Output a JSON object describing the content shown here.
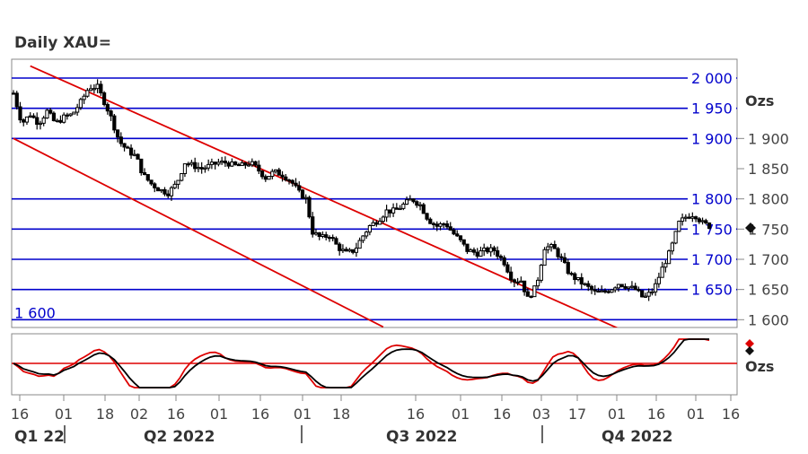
{
  "title": "Daily XAU=",
  "chart_data": [
    {
      "type": "candlestick",
      "title": "Daily XAU=",
      "unit_label": "Ozs",
      "ylim": [
        1590,
        2030
      ],
      "y_ticks": [
        "1 600",
        "1 650",
        "1 700",
        "1 750",
        "1 800",
        "1 850",
        "1 900"
      ],
      "y_tick_values": [
        1600,
        1650,
        1700,
        1750,
        1800,
        1850,
        1900
      ],
      "last_price": 1752,
      "level_lines": [
        {
          "value": 2000,
          "label": "2 000"
        },
        {
          "value": 1950,
          "label": "1 950"
        },
        {
          "value": 1900,
          "label": "1 900"
        },
        {
          "value": 1800,
          "label": "1 800"
        },
        {
          "value": 1750,
          "label": "1 750"
        },
        {
          "value": 1700,
          "label": "1 700"
        },
        {
          "value": 1650,
          "label": "1 650"
        },
        {
          "value": 1600,
          "label": "1 600"
        }
      ],
      "trend_lines": [
        {
          "name": "channel-upper",
          "from": {
            "day": 10,
            "value": 2020
          },
          "to": {
            "day": 312,
            "value": 1645
          }
        },
        {
          "name": "channel-lower",
          "from": {
            "day": 0,
            "value": 1900
          },
          "to": {
            "day": 220,
            "value": 1588
          }
        }
      ],
      "price_path": [
        [
          0,
          1975
        ],
        [
          5,
          1925
        ],
        [
          10,
          1940
        ],
        [
          15,
          1925
        ],
        [
          20,
          1945
        ],
        [
          25,
          1925
        ],
        [
          30,
          1935
        ],
        [
          35,
          1940
        ],
        [
          40,
          1960
        ],
        [
          45,
          1985
        ],
        [
          50,
          1985
        ],
        [
          55,
          1955
        ],
        [
          58,
          1935
        ],
        [
          63,
          1895
        ],
        [
          68,
          1880
        ],
        [
          73,
          1870
        ],
        [
          77,
          1840
        ],
        [
          82,
          1825
        ],
        [
          87,
          1815
        ],
        [
          92,
          1810
        ],
        [
          97,
          1825
        ],
        [
          102,
          1860
        ],
        [
          107,
          1855
        ],
        [
          112,
          1850
        ],
        [
          117,
          1855
        ],
        [
          122,
          1860
        ],
        [
          127,
          1860
        ],
        [
          131,
          1855
        ],
        [
          136,
          1855
        ],
        [
          141,
          1860
        ],
        [
          145,
          1850
        ],
        [
          150,
          1835
        ],
        [
          155,
          1845
        ],
        [
          160,
          1840
        ],
        [
          165,
          1830
        ],
        [
          170,
          1810
        ],
        [
          174,
          1800
        ],
        [
          178,
          1745
        ],
        [
          183,
          1735
        ],
        [
          188,
          1740
        ],
        [
          193,
          1720
        ],
        [
          198,
          1710
        ],
        [
          203,
          1715
        ],
        [
          207,
          1735
        ],
        [
          212,
          1755
        ],
        [
          217,
          1765
        ],
        [
          222,
          1780
        ],
        [
          227,
          1780
        ],
        [
          232,
          1790
        ],
        [
          237,
          1800
        ],
        [
          242,
          1790
        ],
        [
          247,
          1765
        ],
        [
          252,
          1755
        ],
        [
          257,
          1760
        ],
        [
          261,
          1745
        ],
        [
          266,
          1730
        ],
        [
          270,
          1715
        ],
        [
          276,
          1710
        ],
        [
          281,
          1715
        ],
        [
          286,
          1715
        ],
        [
          292,
          1695
        ],
        [
          297,
          1665
        ],
        [
          302,
          1665
        ],
        [
          306,
          1635
        ],
        [
          311,
          1655
        ],
        [
          316,
          1720
        ],
        [
          321,
          1720
        ],
        [
          326,
          1700
        ],
        [
          331,
          1675
        ],
        [
          336,
          1665
        ],
        [
          341,
          1655
        ],
        [
          346,
          1645
        ],
        [
          350,
          1645
        ],
        [
          355,
          1650
        ],
        [
          360,
          1660
        ],
        [
          365,
          1655
        ],
        [
          370,
          1650
        ],
        [
          375,
          1635
        ],
        [
          381,
          1650
        ],
        [
          386,
          1685
        ],
        [
          391,
          1715
        ],
        [
          396,
          1760
        ],
        [
          400,
          1770
        ],
        [
          405,
          1775
        ],
        [
          410,
          1760
        ],
        [
          414,
          1755
        ]
      ],
      "oscillator": {
        "unit_label": "Ozs",
        "series": [
          {
            "name": "",
            "color": "#000000"
          },
          {
            "name": "",
            "color": "#dd0000"
          }
        ],
        "reference_line_color": "#dd0000"
      },
      "x_ticks": [
        "16",
        "01",
        "18",
        "02",
        "16",
        "01",
        "16",
        "01",
        "18",
        "16",
        "01",
        "16",
        "03",
        "17",
        "01",
        "16",
        "01",
        "16"
      ],
      "quarters": [
        "Q1 22",
        "Q2 2022",
        "Q3 2022",
        "Q4 2022"
      ],
      "colors": {
        "level": "#0000cc",
        "trend": "#dd0000",
        "price": "#000000"
      }
    }
  ]
}
